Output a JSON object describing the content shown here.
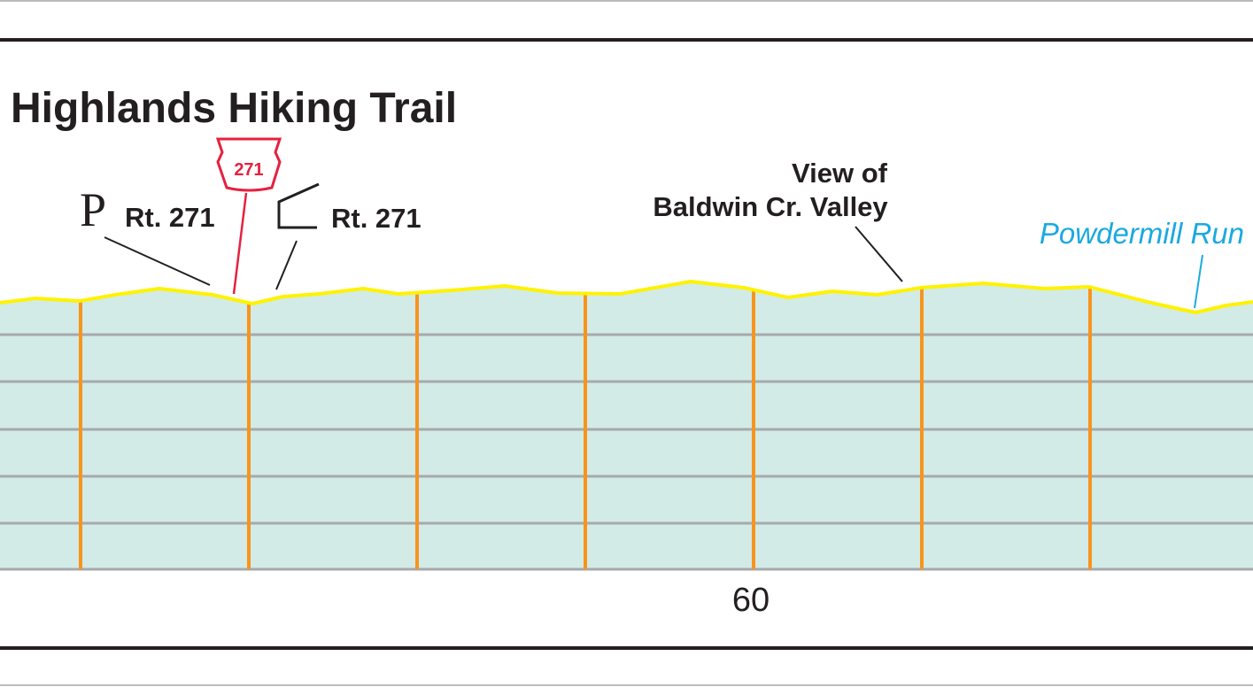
{
  "header": {
    "title": "Highlands Hiking Trail"
  },
  "labels": {
    "parking_symbol": "P",
    "parking_road": "Rt. 271",
    "route_shield": "271",
    "road_crossing": "Rt. 271",
    "view_line1": "View of",
    "view_line2": "Baldwin Cr. Valley",
    "stream": "Powdermill Run"
  },
  "axis": {
    "mile_label": "60"
  }
}
